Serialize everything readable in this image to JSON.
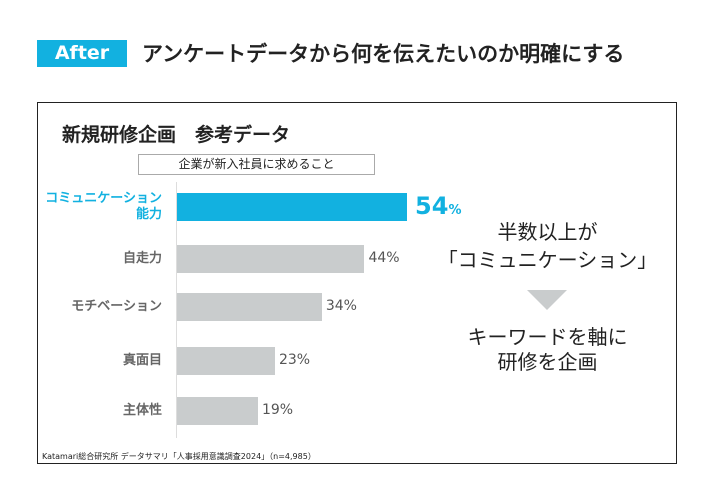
{
  "header": {
    "badge": "After",
    "title": "アンケートデータから何を伝えたいのか明確にする"
  },
  "panel": {
    "title": "新規研修企画　参考データ",
    "source": "Katamari総合研究所 データサマリ「人事採用意識調査2024」（n=4,985）"
  },
  "chart_data": {
    "type": "bar",
    "orientation": "horizontal",
    "title": "企業が新入社員に求めること",
    "categories": [
      "コミュニケーション能力",
      "自走力",
      "モチベーション",
      "真面目",
      "主体性"
    ],
    "category_lines": [
      [
        "コミュニケーション",
        "能力"
      ],
      [
        "自走力"
      ],
      [
        "モチベーション"
      ],
      [
        "真面目"
      ],
      [
        "主体性"
      ]
    ],
    "values": [
      54,
      44,
      34,
      23,
      19
    ],
    "labels": [
      "54",
      "44%",
      "34%",
      "23%",
      "19%"
    ],
    "unit": "%",
    "highlight_index": 0,
    "colors": {
      "highlight": "#12b1e0",
      "default": "#c9cccd"
    }
  },
  "message": {
    "line1": "半数以上が",
    "line2": "「コミュニケーション」",
    "line3": "キーワードを軸に",
    "line4": "研修を企画"
  }
}
